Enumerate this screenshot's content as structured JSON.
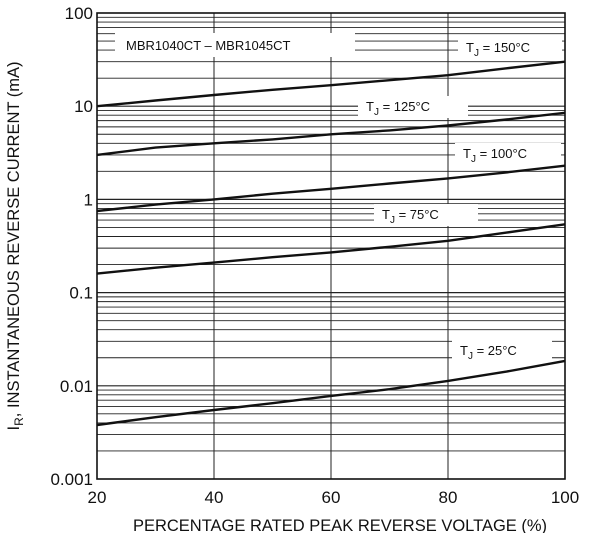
{
  "chart_data": {
    "type": "line",
    "title": "MBR1040CT – MBR1045CT",
    "xlabel": "PERCENTAGE RATED PEAK REVERSE VOLTAGE (%)",
    "ylabel_main": "I",
    "ylabel_sub": "R",
    "ylabel_rest": ", INSTANTANEOUS REVERSE CURRENT (mA)",
    "x_scale": "linear",
    "y_scale": "log",
    "xlim": [
      20,
      100
    ],
    "ylim": [
      0.001,
      100
    ],
    "x_ticks": [
      {
        "value": 20,
        "label": "20"
      },
      {
        "value": 40,
        "label": "40"
      },
      {
        "value": 60,
        "label": "60"
      },
      {
        "value": 80,
        "label": "80"
      },
      {
        "value": 100,
        "label": "100"
      }
    ],
    "y_ticks": [
      {
        "value": 0.001,
        "label": "0.001"
      },
      {
        "value": 0.01,
        "label": "0.01"
      },
      {
        "value": 0.1,
        "label": "0.1"
      },
      {
        "value": 1,
        "label": "1"
      },
      {
        "value": 10,
        "label": "10"
      },
      {
        "value": 100,
        "label": "100"
      }
    ],
    "grid": true,
    "series": [
      {
        "name": "T_J = 150°C",
        "label_main": "T",
        "label_sub": "J",
        "label_rest": " = 150°C",
        "x": [
          20,
          30,
          40,
          50,
          60,
          70,
          80,
          90,
          100
        ],
        "y": [
          10,
          11.5,
          13.2,
          15.0,
          16.8,
          19.0,
          21.5,
          25.5,
          30
        ]
      },
      {
        "name": "T_J = 125°C",
        "label_main": "T",
        "label_sub": "J",
        "label_rest": " = 125°C",
        "x": [
          20,
          30,
          40,
          50,
          60,
          70,
          80,
          90,
          100
        ],
        "y": [
          3.0,
          3.6,
          4.0,
          4.4,
          5.0,
          5.5,
          6.2,
          7.2,
          8.5
        ]
      },
      {
        "name": "T_J = 100°C",
        "label_main": "T",
        "label_sub": "J",
        "label_rest": " = 100°C",
        "x": [
          20,
          30,
          40,
          50,
          60,
          70,
          80,
          90,
          100
        ],
        "y": [
          0.75,
          0.88,
          1.0,
          1.15,
          1.3,
          1.48,
          1.68,
          1.95,
          2.3
        ]
      },
      {
        "name": "T_J = 75°C",
        "label_main": "T",
        "label_sub": "J",
        "label_rest": " = 75°C",
        "x": [
          20,
          30,
          40,
          50,
          60,
          70,
          80,
          90,
          100
        ],
        "y": [
          0.16,
          0.185,
          0.21,
          0.24,
          0.27,
          0.31,
          0.36,
          0.44,
          0.54
        ]
      },
      {
        "name": "T_J = 25°C",
        "label_main": "T",
        "label_sub": "J",
        "label_rest": " = 25°C",
        "x": [
          20,
          30,
          40,
          50,
          60,
          70,
          80,
          90,
          100
        ],
        "y": [
          0.0038,
          0.0046,
          0.0055,
          0.0065,
          0.0078,
          0.0092,
          0.0113,
          0.0142,
          0.0185
        ]
      }
    ]
  },
  "colors": {
    "curve": "#111111",
    "grid": "#222222",
    "frame": "#111111",
    "label_bg": "#ffffff"
  }
}
